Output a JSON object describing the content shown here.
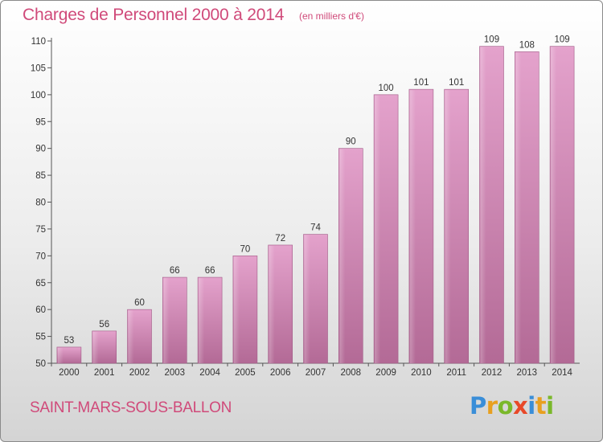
{
  "chart_data": {
    "type": "bar",
    "title": "Charges de Personnel 2000 à 2014",
    "subtitle": "(en milliers d'€)",
    "categories": [
      "2000",
      "2001",
      "2002",
      "2003",
      "2004",
      "2005",
      "2006",
      "2007",
      "2008",
      "2009",
      "2010",
      "2011",
      "2012",
      "2013",
      "2014"
    ],
    "values": [
      53,
      56,
      60,
      66,
      66,
      70,
      72,
      74,
      90,
      100,
      101,
      101,
      109,
      108,
      109
    ],
    "yticks": [
      50,
      55,
      60,
      65,
      70,
      75,
      80,
      85,
      90,
      95,
      100,
      105,
      110
    ],
    "ylim": [
      50,
      110
    ],
    "grid": false,
    "bar_color": "#c66c9c",
    "xlabel": "",
    "ylabel": ""
  },
  "commune": "SAINT-MARS-SOUS-BALLON",
  "logo": {
    "letters": [
      {
        "ch": "P",
        "color": "#3a8ed8"
      },
      {
        "ch": "r",
        "color": "#e8a020"
      },
      {
        "ch": "o",
        "color": "#7ab82a"
      },
      {
        "ch": "x",
        "color": "#e84828"
      },
      {
        "ch": "i",
        "color": "#3a8ed8"
      },
      {
        "ch": "t",
        "color": "#e8a020"
      },
      {
        "ch": "i",
        "color": "#7ab82a"
      }
    ]
  }
}
